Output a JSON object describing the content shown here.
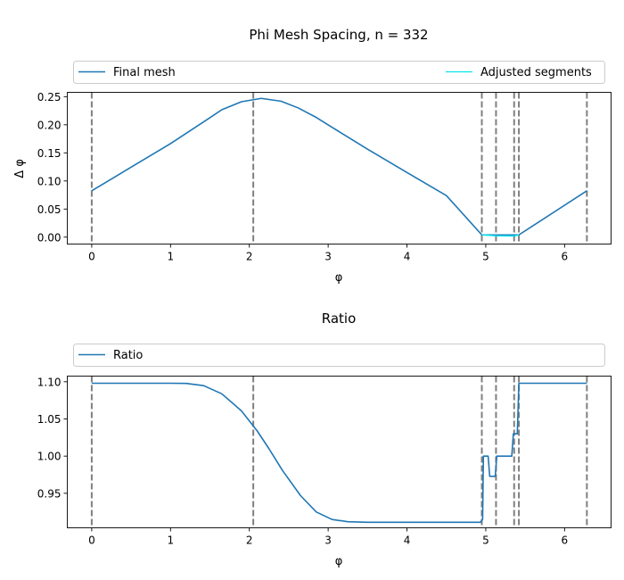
{
  "colors": {
    "final_mesh": "#1f77b4",
    "adjusted": "#00e5ee",
    "ratio": "#1f77b4",
    "breakpoint": "#808080"
  },
  "chart_data": [
    {
      "type": "line",
      "title": "Phi Mesh Spacing, n = 332",
      "xlabel": "φ",
      "ylabel": "Δ φ",
      "xlim": [
        -0.31,
        6.59
      ],
      "ylim": [
        -0.0123,
        0.2577
      ],
      "xticks": [
        0,
        1,
        2,
        3,
        4,
        5,
        6
      ],
      "yticks": [
        0.0,
        0.05,
        0.1,
        0.15,
        0.2,
        0.25
      ],
      "ytick_labels": [
        "0.00",
        "0.05",
        "0.10",
        "0.15",
        "0.20",
        "0.25"
      ],
      "legend_position": "above plot, spanning full width",
      "grid": false,
      "vlines": [
        0.0,
        2.05,
        4.95,
        5.13,
        5.36,
        5.42,
        6.283
      ],
      "series": [
        {
          "name": "Final mesh",
          "color": "#1f77b4",
          "points": [
            [
              0.0,
              0.0825
            ],
            [
              0.5,
              0.1245
            ],
            [
              1.0,
              0.1665
            ],
            [
              1.45,
              0.208
            ],
            [
              1.65,
              0.2267
            ],
            [
              1.9,
              0.241
            ],
            [
              2.15,
              0.247
            ],
            [
              2.4,
              0.242
            ],
            [
              2.62,
              0.23
            ],
            [
              2.85,
              0.213
            ],
            [
              3.05,
              0.1955
            ],
            [
              3.5,
              0.1565
            ],
            [
              4.0,
              0.115
            ],
            [
              4.5,
              0.074
            ],
            [
              4.95,
              0.004
            ],
            [
              5.42,
              0.004
            ],
            [
              6.283,
              0.0825
            ]
          ]
        },
        {
          "name": "Adjusted segments",
          "color": "#00e5ee",
          "points": [
            [
              4.95,
              0.004
            ],
            [
              5.13,
              0.0025
            ],
            [
              5.36,
              0.002
            ],
            [
              5.42,
              0.004
            ]
          ]
        }
      ]
    },
    {
      "type": "line",
      "title": "Ratio",
      "xlabel": "φ",
      "ylabel": "",
      "xlim": [
        -0.31,
        6.59
      ],
      "ylim": [
        0.9036,
        1.1076
      ],
      "xticks": [
        0,
        1,
        2,
        3,
        4,
        5,
        6
      ],
      "yticks": [
        0.95,
        1.0,
        1.05,
        1.1
      ],
      "ytick_labels": [
        "0.95",
        "1.00",
        "1.05",
        "1.10"
      ],
      "legend_position": "above plot, spanning full width",
      "grid": false,
      "vlines": [
        0.0,
        2.05,
        4.95,
        5.13,
        5.36,
        5.42,
        6.283
      ],
      "series": [
        {
          "name": "Ratio",
          "color": "#1f77b4",
          "points": [
            [
              0.0,
              1.098
            ],
            [
              0.5,
              1.098
            ],
            [
              1.0,
              1.098
            ],
            [
              1.2,
              1.0978
            ],
            [
              1.42,
              1.0948
            ],
            [
              1.65,
              1.0838
            ],
            [
              1.9,
              1.0608
            ],
            [
              2.1,
              1.0338
            ],
            [
              2.25,
              1.0098
            ],
            [
              2.42,
              0.9808
            ],
            [
              2.65,
              0.9468
            ],
            [
              2.85,
              0.9248
            ],
            [
              3.05,
              0.9148
            ],
            [
              3.25,
              0.9118
            ],
            [
              3.5,
              0.911
            ],
            [
              4.0,
              0.911
            ],
            [
              4.5,
              0.911
            ],
            [
              4.93,
              0.911
            ],
            [
              4.96,
              0.915
            ],
            [
              4.97,
              1.0
            ],
            [
              5.03,
              1.0
            ],
            [
              5.05,
              0.9728
            ],
            [
              5.12,
              0.9728
            ],
            [
              5.14,
              1.0
            ],
            [
              5.33,
              1.0
            ],
            [
              5.35,
              1.03
            ],
            [
              5.38,
              1.03
            ],
            [
              5.4,
              1.03
            ],
            [
              5.42,
              1.098
            ],
            [
              6.0,
              1.098
            ],
            [
              6.283,
              1.098
            ]
          ]
        }
      ]
    }
  ]
}
